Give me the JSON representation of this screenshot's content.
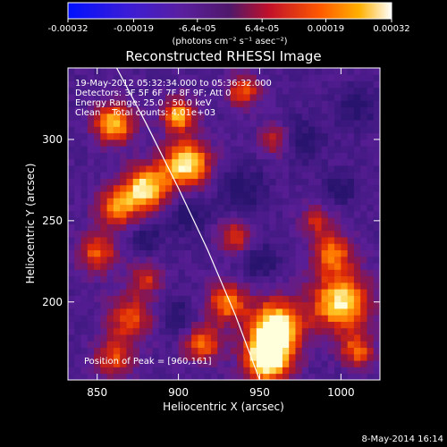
{
  "chart_data": {
    "type": "heatmap",
    "title": "Reconstructed RHESSI Image",
    "xlabel": "Heliocentric X (arcsec)",
    "ylabel": "Heliocentric Y (arcsec)",
    "xlim": [
      832,
      1024
    ],
    "ylim": [
      152,
      344
    ],
    "x_ticks": [
      "850",
      "900",
      "950",
      "1000"
    ],
    "x_tick_values": [
      850,
      900,
      950,
      1000
    ],
    "y_ticks": [
      "200",
      "250",
      "300"
    ],
    "y_tick_values": [
      200,
      250,
      300
    ],
    "colorbar": {
      "min": -0.00032,
      "max": 0.00032,
      "tick_labels": [
        "-0.00032",
        "-0.00019",
        "-6.4e-05",
        "6.4e-05",
        "0.00019",
        "0.00032"
      ],
      "tick_values": [
        -0.00032,
        -0.00019,
        -6.4e-05,
        6.4e-05,
        0.00019,
        0.00032
      ],
      "unit_label": "(photons cm⁻² s⁻¹ asec⁻²)"
    },
    "annotations": [
      "19-May-2012 05:32:34.000 to 05:36:32.000",
      "Detectors: 3F 5F 6F 7F 8F 9F; Att 0",
      "Energy Range: 25.0 - 50.0 keV",
      "Clean    Total counts: 4.01e+03"
    ],
    "peak_label": "Position of Peak = [960,161]",
    "peak": [
      960,
      161
    ],
    "limb_curve": [
      [
        862,
        344
      ],
      [
        880,
        310
      ],
      [
        900,
        270
      ],
      [
        918,
        232
      ],
      [
        935,
        192
      ],
      [
        950,
        152
      ]
    ]
  },
  "footer_date": "8-May-2014 16:14"
}
